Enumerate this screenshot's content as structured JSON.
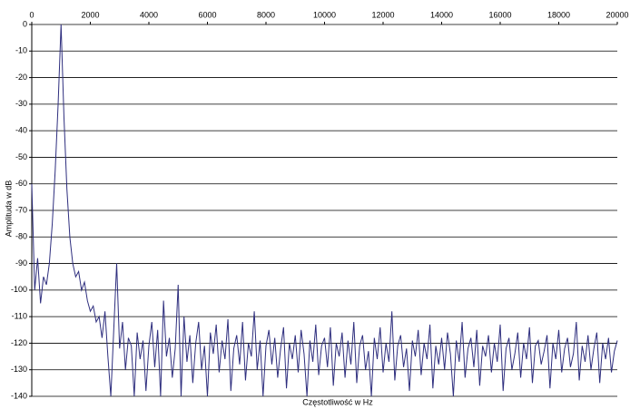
{
  "chart_data": {
    "type": "line",
    "xlabel": "Częstotliwość w Hz",
    "ylabel": "Amplituda w dB",
    "color": "#2e2e7e",
    "grid": true,
    "xlim": [
      0,
      20000
    ],
    "xticks": [
      0,
      2000,
      4000,
      6000,
      8000,
      10000,
      12000,
      14000,
      16000,
      18000,
      20000
    ],
    "ylim": [
      -140,
      0
    ],
    "yticks": [
      0,
      -10,
      -20,
      -30,
      -40,
      -50,
      -60,
      -70,
      -80,
      -90,
      -100,
      -110,
      -120,
      -130,
      -140
    ],
    "x": [
      0,
      100,
      200,
      300,
      400,
      500,
      600,
      700,
      800,
      900,
      1000,
      1100,
      1200,
      1300,
      1400,
      1500,
      1600,
      1700,
      1800,
      1900,
      2000,
      2100,
      2200,
      2300,
      2400,
      2500,
      2600,
      2700,
      2800,
      2900,
      3000,
      3100,
      3200,
      3300,
      3400,
      3500,
      3600,
      3700,
      3800,
      3900,
      4000,
      4100,
      4200,
      4300,
      4400,
      4500,
      4600,
      4700,
      4800,
      4900,
      5000,
      5100,
      5200,
      5300,
      5400,
      5500,
      5600,
      5700,
      5800,
      5900,
      6000,
      6100,
      6200,
      6300,
      6400,
      6500,
      6600,
      6700,
      6800,
      6900,
      7000,
      7100,
      7200,
      7300,
      7400,
      7500,
      7600,
      7700,
      7800,
      7900,
      8000,
      8100,
      8200,
      8300,
      8400,
      8500,
      8600,
      8700,
      8800,
      8900,
      9000,
      9100,
      9200,
      9300,
      9400,
      9500,
      9600,
      9700,
      9800,
      9900,
      10000,
      10100,
      10200,
      10300,
      10400,
      10500,
      10600,
      10700,
      10800,
      10900,
      11000,
      11100,
      11200,
      11300,
      11400,
      11500,
      11600,
      11700,
      11800,
      11900,
      12000,
      12100,
      12200,
      12300,
      12400,
      12500,
      12600,
      12700,
      12800,
      12900,
      13000,
      13100,
      13200,
      13300,
      13400,
      13500,
      13600,
      13700,
      13800,
      13900,
      14000,
      14100,
      14200,
      14300,
      14400,
      14500,
      14600,
      14700,
      14800,
      14900,
      15000,
      15100,
      15200,
      15300,
      15400,
      15500,
      15600,
      15700,
      15800,
      15900,
      16000,
      16100,
      16200,
      16300,
      16400,
      16500,
      16600,
      16700,
      16800,
      16900,
      17000,
      17100,
      17200,
      17300,
      17400,
      17500,
      17600,
      17700,
      17800,
      17900,
      18000,
      18100,
      18200,
      18300,
      18400,
      18500,
      18600,
      18700,
      18800,
      18900,
      19000,
      19100,
      19200,
      19300,
      19400,
      19500,
      19600,
      19700,
      19800,
      19900,
      20000
    ],
    "values": [
      -60,
      -100,
      -88,
      -105,
      -95,
      -98,
      -90,
      -75,
      -55,
      -30,
      0,
      -35,
      -62,
      -80,
      -90,
      -95,
      -93,
      -100,
      -97,
      -104,
      -108,
      -106,
      -112,
      -110,
      -118,
      -108,
      -125,
      -140,
      -115,
      -90,
      -122,
      -112,
      -130,
      -118,
      -121,
      -140,
      -116,
      -126,
      -119,
      -138,
      -121,
      -112,
      -129,
      -115,
      -140,
      -104,
      -125,
      -118,
      -133,
      -122,
      -98,
      -140,
      -110,
      -127,
      -117,
      -135,
      -120,
      -112,
      -130,
      -121,
      -140,
      -116,
      -124,
      -113,
      -131,
      -119,
      -126,
      -111,
      -138,
      -122,
      -117,
      -128,
      -112,
      -134,
      -120,
      -125,
      -108,
      -130,
      -119,
      -140,
      -121,
      -115,
      -128,
      -118,
      -133,
      -122,
      -114,
      -137,
      -120,
      -126,
      -117,
      -131,
      -115,
      -124,
      -140,
      -119,
      -127,
      -113,
      -132,
      -121,
      -118,
      -129,
      -114,
      -136,
      -120,
      -125,
      -116,
      -133,
      -119,
      -128,
      -112,
      -135,
      -121,
      -117,
      -130,
      -123,
      -140,
      -118,
      -126,
      -114,
      -131,
      -120,
      -127,
      -108,
      -134,
      -121,
      -117,
      -129,
      -122,
      -138,
      -119,
      -125,
      -115,
      -132,
      -120,
      -126,
      -113,
      -137,
      -121,
      -128,
      -118,
      -130,
      -116,
      -124,
      -140,
      -119,
      -127,
      -112,
      -133,
      -122,
      -118,
      -129,
      -115,
      -136,
      -121,
      -125,
      -117,
      -131,
      -120,
      -127,
      -113,
      -138,
      -122,
      -118,
      -130,
      -124,
      -116,
      -133,
      -120,
      -126,
      -114,
      -135,
      -121,
      -119,
      -128,
      -123,
      -117,
      -137,
      -120,
      -126,
      -115,
      -131,
      -122,
      -118,
      -129,
      -124,
      -112,
      -134,
      -121,
      -127,
      -117,
      -130,
      -122,
      -116,
      -135,
      -120,
      -126,
      -118,
      -131,
      -123,
      -119
    ]
  }
}
